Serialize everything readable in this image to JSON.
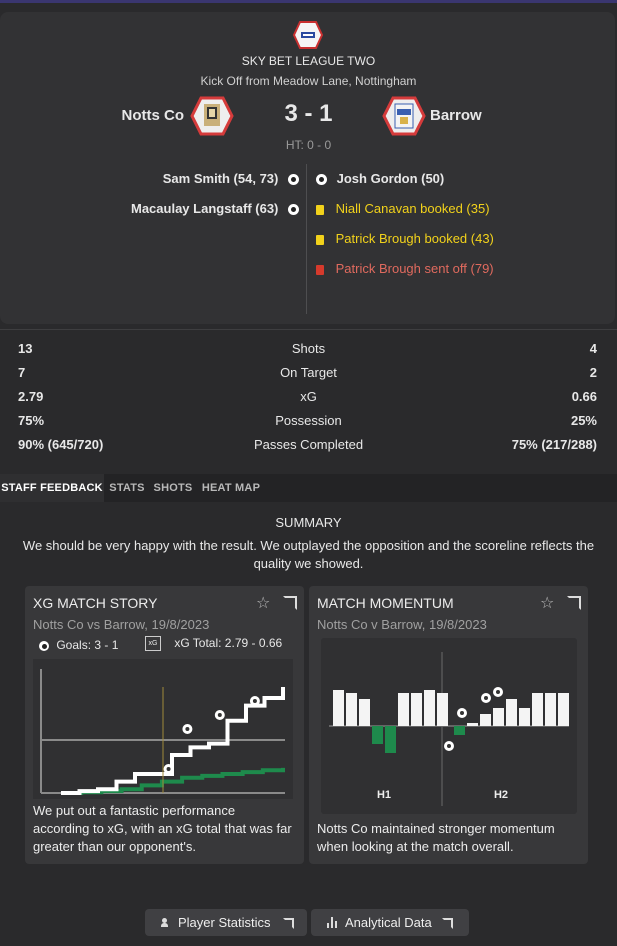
{
  "match": {
    "competition": "SKY BET LEAGUE TWO",
    "venue": "Kick Off from Meadow Lane, Nottingham",
    "home_team": "Notts Co",
    "away_team": "Barrow",
    "score": "3 - 1",
    "half_time": "HT: 0 - 0"
  },
  "events": {
    "home": [
      {
        "text": "Sam Smith (54, 73)",
        "icon": "goal-ball-icon"
      },
      {
        "text": "Macaulay Langstaff (63)",
        "icon": "goal-ball-icon"
      }
    ],
    "away": [
      {
        "text": "Josh Gordon (50)",
        "icon": "goal-ball-icon",
        "color": "#ffffff"
      },
      {
        "text": "Niall Canavan booked (35)",
        "icon": "yellow-card-icon",
        "color": "#f2d21b"
      },
      {
        "text": "Patrick Brough booked (43)",
        "icon": "yellow-card-icon",
        "color": "#f2d21b"
      },
      {
        "text": "Patrick Brough sent off (79)",
        "icon": "red-card-icon",
        "color": "#e06a5e"
      }
    ]
  },
  "stats": [
    {
      "label": "Shots",
      "home": "13",
      "away": "4"
    },
    {
      "label": "On Target",
      "home": "7",
      "away": "2"
    },
    {
      "label": "xG",
      "home": "2.79",
      "away": "0.66"
    },
    {
      "label": "Possession",
      "home": "75%",
      "away": "25%"
    },
    {
      "label": "Passes Completed",
      "home": "90% (645/720)",
      "away": "75% (217/288)"
    }
  ],
  "tabs": [
    "STAFF FEEDBACK",
    "STATS",
    "SHOTS",
    "HEAT MAP"
  ],
  "summary": {
    "heading": "SUMMARY",
    "text": "We should be very happy with the result. We outplayed the opposition and the scoreline reflects the quality we showed."
  },
  "xg_card": {
    "title": "XG MATCH STORY",
    "subtitle": "Notts Co vs Barrow, 19/8/2023",
    "goals_label": "Goals: 3 - 1",
    "xg_label": "xG Total: 2.79 - 0.66",
    "text": "We put out a fantastic performance according to xG, with an xG total that was far greater than our opponent's."
  },
  "momentum_card": {
    "title": "MATCH MOMENTUM",
    "subtitle": "Notts Co v Barrow, 19/8/2023",
    "h1_label": "H1",
    "h2_label": "H2",
    "text": "Notts Co maintained stronger momentum when looking at the match overall."
  },
  "buttons": {
    "player_stats": "Player Statistics",
    "analytical": "Analytical Data"
  },
  "colors": {
    "home_line": "#ffffff",
    "away_line": "#1e8a4c",
    "yellow": "#f2d21b",
    "red": "#d63a2c"
  },
  "chart_data": [
    {
      "type": "line",
      "title": "",
      "series": [
        {
          "values": [
            0.0,
            0.05,
            0.1,
            0.3,
            0.5,
            0.5,
            1.0,
            1.2,
            1.3,
            1.9,
            2.3,
            2.5,
            2.79
          ]
        },
        {
          "values": [
            0.0,
            0.02,
            0.05,
            0.1,
            0.2,
            0.3,
            0.4,
            0.45,
            0.5,
            0.55,
            0.6,
            0.66
          ]
        }
      ],
      "goals_home_minutes": [
        54,
        63,
        73
      ],
      "goals_away_minutes": [
        50
      ]
    },
    {
      "type": "bar",
      "title": "",
      "categories": [
        "H1",
        "H2"
      ],
      "home_bars": [
        0.6,
        0.55,
        0.45,
        0.0,
        0.0,
        0.55,
        0.55,
        0.6,
        0.55,
        0.0,
        0.05,
        0.2,
        0.3,
        0.45,
        0.3,
        0.55,
        0.55,
        0.55
      ],
      "away_bars": [
        0.0,
        0.0,
        0.0,
        0.3,
        0.45,
        0.0,
        0.0,
        0.0,
        0.0,
        0.15,
        0.0,
        0.0,
        0.0,
        0.0,
        0.0,
        0.0,
        0.0,
        0.0
      ]
    }
  ]
}
